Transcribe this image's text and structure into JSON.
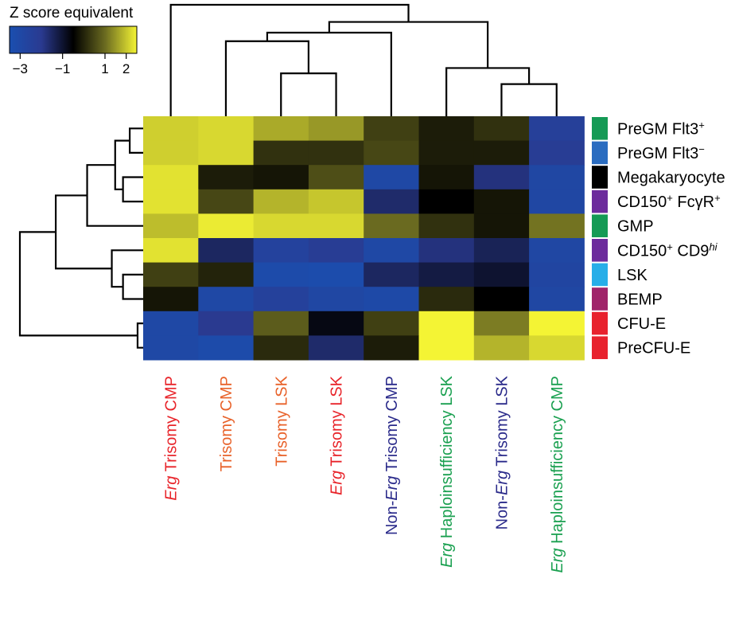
{
  "chart_data": {
    "type": "heatmap",
    "title": "",
    "legend": {
      "title": "Z score equivalent",
      "ticks": [
        "−3",
        "−1",
        "1",
        "2"
      ],
      "tick_values": [
        -3,
        -1,
        1,
        2
      ],
      "range": [
        -3.5,
        2.5
      ],
      "colorscale": [
        "#1a4fb0",
        "#2a3a90",
        "#000000",
        "#6a6a20",
        "#f4f434"
      ],
      "placement": "top-left"
    },
    "rows": [
      {
        "label": "PreGM Flt3",
        "sup": "+",
        "sup_italic": false,
        "tail": "",
        "color": "#159a55"
      },
      {
        "label": "PreGM Flt3",
        "sup": "−",
        "sup_italic": false,
        "tail": "",
        "color": "#2a6cc0"
      },
      {
        "label": "Megakaryocyte",
        "sup": "",
        "sup_italic": false,
        "tail": "",
        "color": "#000000"
      },
      {
        "label": "CD150",
        "sup": "+",
        "sup_italic": false,
        "tail": " FcγR",
        "tail_sup": "+",
        "color": "#6c2c9c"
      },
      {
        "label": "GMP",
        "sup": "",
        "sup_italic": false,
        "tail": "",
        "color": "#159a55"
      },
      {
        "label": "CD150",
        "sup": "+",
        "sup_italic": false,
        "tail": " CD9",
        "tail_sup": "hi",
        "tail_sup_italic": true,
        "color": "#6c2c9c"
      },
      {
        "label": "LSK",
        "sup": "",
        "sup_italic": false,
        "tail": "",
        "color": "#27aee8"
      },
      {
        "label": "BEMP",
        "sup": "",
        "sup_italic": false,
        "tail": "",
        "color": "#a0246a"
      },
      {
        "label": "CFU-E",
        "sup": "",
        "sup_italic": false,
        "tail": "",
        "color": "#e8222e"
      },
      {
        "label": "PreCFU-E",
        "sup": "",
        "sup_italic": false,
        "tail": "",
        "color": "#e8222e"
      }
    ],
    "columns": [
      {
        "parts": [
          {
            "text": "Erg",
            "italic": true
          },
          {
            "text": " Trisomy CMP",
            "italic": false
          }
        ],
        "color": "#e8242a"
      },
      {
        "parts": [
          {
            "text": "Trisomy CMP",
            "italic": false
          }
        ],
        "color": "#e8622a"
      },
      {
        "parts": [
          {
            "text": "Trisomy LSK",
            "italic": false
          }
        ],
        "color": "#e8622a"
      },
      {
        "parts": [
          {
            "text": "Erg",
            "italic": true
          },
          {
            "text": " Trisomy LSK",
            "italic": false
          }
        ],
        "color": "#e8242a"
      },
      {
        "parts": [
          {
            "text": "Non-",
            "italic": false
          },
          {
            "text": "Erg",
            "italic": true
          },
          {
            "text": " Trisomy CMP",
            "italic": false
          }
        ],
        "color": "#2a2a8a"
      },
      {
        "parts": [
          {
            "text": "Erg",
            "italic": true
          },
          {
            "text": " Haploinsufficiency LSK",
            "italic": false
          }
        ],
        "color": "#1aa050"
      },
      {
        "parts": [
          {
            "text": "Non-",
            "italic": false
          },
          {
            "text": "Erg",
            "italic": true
          },
          {
            "text": " Trisomy LSK",
            "italic": false
          }
        ],
        "color": "#2a2a8a"
      },
      {
        "parts": [
          {
            "text": "Erg",
            "italic": true
          },
          {
            "text": " Haploinsufficiency CMP",
            "italic": false
          }
        ],
        "color": "#1aa050"
      }
    ],
    "values": [
      [
        2.1,
        2.2,
        1.7,
        1.5,
        0.4,
        -0.1,
        0.2,
        -2.4
      ],
      [
        2.1,
        2.2,
        0.2,
        0.2,
        0.5,
        -0.1,
        -0.1,
        -2.2
      ],
      [
        2.3,
        -0.1,
        -0.2,
        0.6,
        -3.0,
        -0.2,
        -1.8,
        -2.9
      ],
      [
        2.3,
        0.5,
        1.8,
        2.0,
        -1.6,
        -0.5,
        -0.2,
        -2.9
      ],
      [
        1.9,
        2.4,
        2.2,
        2.2,
        1.0,
        0.2,
        -0.2,
        1.1
      ],
      [
        2.3,
        -1.5,
        -2.6,
        -2.2,
        -3.0,
        -1.8,
        -1.4,
        -2.9
      ],
      [
        0.4,
        0.0,
        -3.2,
        -3.3,
        -1.5,
        -1.2,
        -1.0,
        -2.8
      ],
      [
        -0.2,
        -3.0,
        -2.5,
        -2.9,
        -3.1,
        0.1,
        -0.5,
        -2.9
      ],
      [
        -3.0,
        -2.0,
        0.8,
        -0.7,
        0.4,
        2.5,
        1.2,
        2.5
      ],
      [
        -3.0,
        -3.2,
        0.1,
        -1.6,
        -0.1,
        2.5,
        1.8,
        2.2
      ]
    ],
    "row_dendrogram": {
      "merges": [
        [
          0,
          1,
          0.12
        ],
        [
          2,
          3,
          0.18
        ],
        [
          10,
          11,
          0.25
        ],
        [
          12,
          4,
          0.5
        ],
        [
          6,
          7,
          0.18
        ],
        [
          5,
          14,
          0.28
        ],
        [
          15,
          13,
          0.78
        ],
        [
          8,
          9,
          0.05
        ],
        [
          16,
          17,
          1.1
        ]
      ],
      "max_height": 1.1
    },
    "col_dendrogram": {
      "merges": [
        [
          2,
          3,
          0.4
        ],
        [
          1,
          8,
          0.7
        ],
        [
          4,
          9,
          0.78
        ],
        [
          6,
          7,
          0.3
        ],
        [
          5,
          11,
          0.45
        ],
        [
          10,
          12,
          0.88
        ],
        [
          0,
          13,
          1.04
        ]
      ],
      "max_height": 1.04
    }
  }
}
